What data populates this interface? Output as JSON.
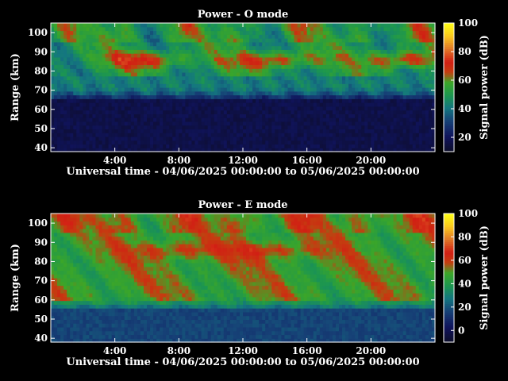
{
  "chart_data": [
    {
      "type": "heatmap",
      "title": "Power - O mode",
      "xlabel": "Universal time - 04/06/2025 00:00:00 to 05/06/2025 00:00:00",
      "ylabel": "Range (km)",
      "xlim": [
        0,
        24
      ],
      "ylim": [
        38,
        105
      ],
      "x_ticks": [
        "4:00",
        "8:00",
        "12:00",
        "16:00",
        "20:00"
      ],
      "y_ticks": [
        "40",
        "50",
        "60",
        "70",
        "80",
        "90",
        "100"
      ],
      "colorbar": {
        "label": "Signal power (dB)",
        "range": [
          10,
          100
        ],
        "ticks": [
          "20",
          "40",
          "60",
          "80",
          "100"
        ]
      },
      "features": {
        "noise_floor_below_km": 65,
        "echo_band_top_km": 84,
        "strong_layer_km": 86,
        "strong_layer_times_h": [
          6,
          14,
          22
        ],
        "strong_layer_peak_db": 75
      }
    },
    {
      "type": "heatmap",
      "title": "Power - E mode",
      "xlabel": "Universal time - 04/06/2025 00:00:00 to 05/06/2025 00:00:00",
      "ylabel": "Range (km)",
      "xlim": [
        0,
        24
      ],
      "ylim": [
        38,
        105
      ],
      "x_ticks": [
        "4:00",
        "8:00",
        "12:00",
        "16:00",
        "20:00"
      ],
      "y_ticks": [
        "40",
        "50",
        "60",
        "70",
        "80",
        "90",
        "100"
      ],
      "colorbar": {
        "label": "Signal power (dB)",
        "range": [
          -10,
          100
        ],
        "ticks": [
          "0",
          "20",
          "40",
          "60",
          "80",
          "100"
        ]
      },
      "features": {
        "noise_floor_below_km": 55,
        "echo_band_top_km": 66,
        "strong_layer_km": 86,
        "strong_layer_times_h": [
          8,
          14
        ],
        "strong_layer_peak_db": 68
      }
    }
  ]
}
